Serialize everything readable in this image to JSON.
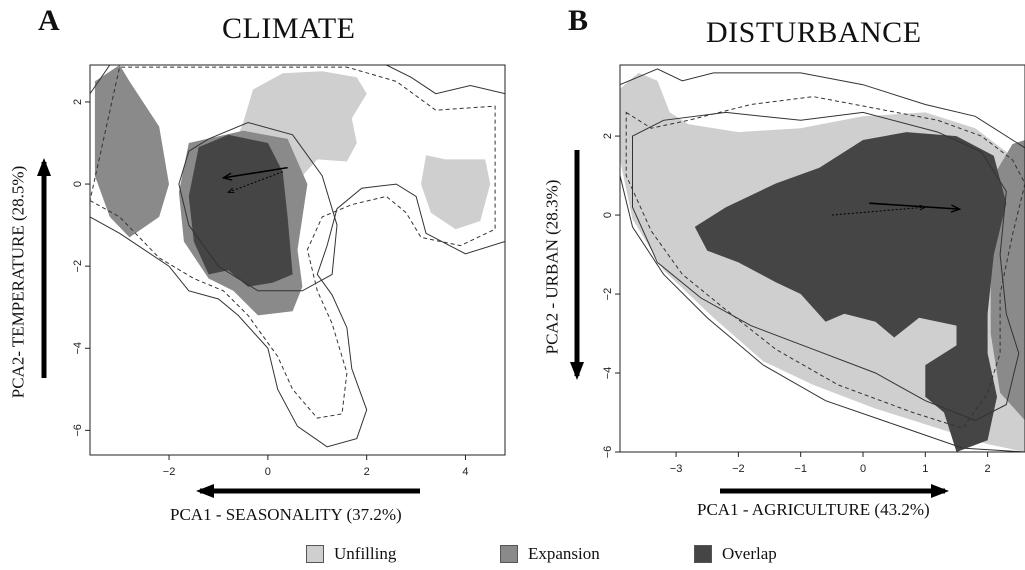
{
  "colors": {
    "unfilling": "#cfcfcf",
    "expansion": "#8a8a8a",
    "overlap": "#454545",
    "contour": "#333333"
  },
  "legend": {
    "items": [
      {
        "label": "Unfilling",
        "color": "#cfcfcf"
      },
      {
        "label": "Expansion",
        "color": "#8a8a8a"
      },
      {
        "label": "Overlap",
        "color": "#454545"
      }
    ]
  },
  "chart_data": [
    {
      "type": "niche-overlap-map",
      "panel_letter": "A",
      "title": "CLIMATE",
      "xlabel": "PCA1 - SEASONALITY (37.2%)",
      "ylabel": "PCA2- TEMPERATURE (28.5%)",
      "xlim": [
        -3.6,
        4.8
      ],
      "ylim": [
        -6.6,
        2.9
      ],
      "xticks": [
        -2,
        0,
        2,
        4
      ],
      "yticks": [
        2,
        0,
        -2,
        -4,
        -6
      ],
      "x_arrow_direction": "left",
      "y_arrow_direction": "up",
      "centroid_shift": {
        "from": [
          0.4,
          0.4
        ],
        "to": [
          -0.9,
          0.15
        ]
      },
      "centroid_shift_dotted": {
        "from": [
          0.3,
          0.3
        ],
        "to": [
          -0.8,
          -0.2
        ]
      },
      "regions": {
        "unfilling": [
          [
            -0.5,
            1.5
          ],
          [
            -0.3,
            2.3
          ],
          [
            0.3,
            2.7
          ],
          [
            1.1,
            2.75
          ],
          [
            1.8,
            2.6
          ],
          [
            2.0,
            2.2
          ],
          [
            1.7,
            1.6
          ],
          [
            1.8,
            1.0
          ],
          [
            1.6,
            0.55
          ],
          [
            1.0,
            0.6
          ],
          [
            0.7,
            0.2
          ],
          [
            0.4,
            -0.6
          ],
          [
            0.0,
            -1.1
          ],
          [
            -0.4,
            -1.2
          ],
          [
            -0.7,
            -0.3
          ],
          [
            -0.8,
            0.6
          ]
        ],
        "unfilling_blob": [
          [
            3.2,
            0.7
          ],
          [
            3.6,
            0.6
          ],
          [
            4.4,
            0.6
          ],
          [
            4.5,
            0.0
          ],
          [
            4.3,
            -0.9
          ],
          [
            3.8,
            -1.1
          ],
          [
            3.3,
            -0.7
          ],
          [
            3.1,
            0.0
          ]
        ],
        "expansion": [
          [
            -3.5,
            2.5
          ],
          [
            -3.0,
            2.9
          ],
          [
            -2.8,
            2.5
          ],
          [
            -2.2,
            1.4
          ],
          [
            -2.0,
            0.0
          ],
          [
            -2.2,
            -0.8
          ],
          [
            -2.8,
            -1.3
          ],
          [
            -3.2,
            -0.8
          ],
          [
            -3.5,
            0.2
          ]
        ],
        "expansion_lower": [
          [
            -1.6,
            1.0
          ],
          [
            -0.5,
            1.3
          ],
          [
            0.4,
            1.1
          ],
          [
            0.8,
            0.0
          ],
          [
            0.6,
            -1.6
          ],
          [
            0.7,
            -2.5
          ],
          [
            0.5,
            -3.1
          ],
          [
            -0.2,
            -3.2
          ],
          [
            -0.7,
            -2.6
          ],
          [
            -1.2,
            -2.3
          ],
          [
            -1.7,
            -1.4
          ],
          [
            -1.8,
            -0.2
          ]
        ],
        "overlap": [
          [
            -1.4,
            0.9
          ],
          [
            -0.8,
            1.2
          ],
          [
            0.0,
            1.0
          ],
          [
            0.3,
            0.3
          ],
          [
            0.4,
            -0.8
          ],
          [
            0.5,
            -2.2
          ],
          [
            0.1,
            -2.4
          ],
          [
            -0.4,
            -2.5
          ],
          [
            -0.8,
            -2.1
          ],
          [
            -1.2,
            -2.2
          ],
          [
            -1.5,
            -1.4
          ],
          [
            -1.6,
            -0.3
          ]
        ]
      },
      "contours": {
        "outer_solid": [
          [
            -3.6,
            0.0
          ],
          [
            -3.6,
            -0.8
          ],
          [
            -3.0,
            -1.2
          ],
          [
            -2.0,
            -2.0
          ],
          [
            -1.6,
            -2.6
          ],
          [
            -1.0,
            -2.8
          ],
          [
            -0.6,
            -3.2
          ],
          [
            0.0,
            -4.0
          ],
          [
            0.2,
            -5.0
          ],
          [
            0.6,
            -5.9
          ],
          [
            1.2,
            -6.4
          ],
          [
            1.8,
            -6.2
          ],
          [
            2.0,
            -5.5
          ],
          [
            1.7,
            -4.5
          ],
          [
            1.6,
            -3.5
          ],
          [
            1.3,
            -2.7
          ],
          [
            1.0,
            -2.2
          ],
          [
            1.2,
            -1.5
          ],
          [
            1.4,
            -0.6
          ],
          [
            1.9,
            -0.1
          ],
          [
            2.6,
            0.0
          ],
          [
            3.0,
            -0.3
          ],
          [
            3.2,
            -1.2
          ],
          [
            4.0,
            -1.7
          ],
          [
            4.8,
            -1.4
          ],
          [
            4.8,
            2.2
          ],
          [
            4.1,
            2.4
          ],
          [
            3.4,
            2.2
          ],
          [
            2.9,
            2.6
          ],
          [
            2.4,
            2.9
          ],
          [
            -3.2,
            2.9
          ],
          [
            -3.6,
            2.2
          ]
        ],
        "inner_dashed": [
          [
            -3.6,
            -0.4
          ],
          [
            -3.0,
            -0.8
          ],
          [
            -2.2,
            -1.8
          ],
          [
            -1.5,
            -2.3
          ],
          [
            -0.9,
            -2.6
          ],
          [
            -0.4,
            -3.2
          ],
          [
            0.2,
            -4.2
          ],
          [
            0.5,
            -5.0
          ],
          [
            1.0,
            -5.7
          ],
          [
            1.5,
            -5.6
          ],
          [
            1.6,
            -4.6
          ],
          [
            1.3,
            -3.4
          ],
          [
            1.0,
            -2.6
          ],
          [
            0.8,
            -1.6
          ],
          [
            1.1,
            -0.8
          ],
          [
            1.7,
            -0.5
          ],
          [
            2.4,
            -0.3
          ],
          [
            2.8,
            -0.7
          ],
          [
            3.1,
            -1.3
          ],
          [
            3.9,
            -1.5
          ],
          [
            4.6,
            -1.1
          ],
          [
            4.6,
            1.9
          ],
          [
            3.4,
            1.8
          ],
          [
            2.6,
            2.5
          ],
          [
            1.6,
            2.85
          ],
          [
            -3.0,
            2.85
          ]
        ],
        "small_loop": [
          [
            -1.2,
            1.1
          ],
          [
            -0.4,
            1.5
          ],
          [
            0.5,
            1.2
          ],
          [
            1.1,
            0.2
          ],
          [
            1.4,
            -1.0
          ],
          [
            1.3,
            -2.2
          ],
          [
            0.7,
            -2.6
          ],
          [
            -0.2,
            -2.6
          ],
          [
            -1.0,
            -2.0
          ],
          [
            -1.6,
            -1.0
          ],
          [
            -1.8,
            0.0
          ],
          [
            -1.6,
            0.8
          ]
        ]
      }
    },
    {
      "type": "niche-overlap-map",
      "panel_letter": "B",
      "title": "DISTURBANCE",
      "xlabel": "PCA1 - AGRICULTURE (43.2%)",
      "ylabel": "PCA2 - URBAN   (28.3%)",
      "xlim": [
        -3.9,
        2.6
      ],
      "ylim": [
        -6.0,
        3.8
      ],
      "xticks": [
        -3,
        -2,
        -1,
        0,
        1,
        2
      ],
      "yticks": [
        2,
        0,
        -2,
        -4,
        -6
      ],
      "x_arrow_direction": "right",
      "y_arrow_direction": "down",
      "centroid_shift": {
        "from": [
          0.1,
          0.3
        ],
        "to": [
          1.55,
          0.15
        ]
      },
      "centroid_shift_dotted": {
        "from": [
          -0.5,
          0.0
        ],
        "to": [
          1.0,
          0.2
        ]
      },
      "regions": {
        "unfilling": [
          [
            -3.9,
            3.2
          ],
          [
            -3.6,
            3.6
          ],
          [
            -3.3,
            3.4
          ],
          [
            -3.1,
            2.6
          ],
          [
            -2.8,
            2.3
          ],
          [
            -2.0,
            2.1
          ],
          [
            -1.0,
            2.2
          ],
          [
            0.0,
            2.5
          ],
          [
            1.0,
            2.6
          ],
          [
            1.8,
            2.2
          ],
          [
            2.3,
            1.6
          ],
          [
            2.6,
            1.0
          ],
          [
            2.6,
            -6.0
          ],
          [
            2.0,
            -5.8
          ],
          [
            1.2,
            -5.4
          ],
          [
            0.2,
            -4.9
          ],
          [
            -0.8,
            -4.3
          ],
          [
            -1.6,
            -3.7
          ],
          [
            -2.4,
            -2.6
          ],
          [
            -3.2,
            -1.4
          ],
          [
            -3.7,
            -0.1
          ],
          [
            -3.9,
            1.4
          ]
        ],
        "expansion": [
          [
            2.1,
            1.0
          ],
          [
            2.4,
            1.8
          ],
          [
            2.6,
            1.9
          ],
          [
            2.6,
            -5.2
          ],
          [
            2.2,
            -4.5
          ],
          [
            2.05,
            -3.0
          ],
          [
            2.05,
            -1.0
          ]
        ],
        "overlap": [
          [
            -2.7,
            -0.3
          ],
          [
            -2.2,
            0.2
          ],
          [
            -1.4,
            0.8
          ],
          [
            -0.7,
            1.2
          ],
          [
            0.0,
            1.9
          ],
          [
            0.7,
            2.1
          ],
          [
            1.5,
            2.0
          ],
          [
            2.1,
            1.5
          ],
          [
            2.3,
            0.3
          ],
          [
            2.1,
            -1.0
          ],
          [
            2.0,
            -2.5
          ],
          [
            2.0,
            -3.5
          ],
          [
            2.15,
            -4.6
          ],
          [
            2.0,
            -5.7
          ],
          [
            1.5,
            -6.0
          ],
          [
            1.3,
            -5.0
          ],
          [
            1.0,
            -4.6
          ],
          [
            1.0,
            -3.8
          ],
          [
            1.5,
            -3.3
          ],
          [
            1.5,
            -2.8
          ],
          [
            0.9,
            -2.6
          ],
          [
            0.5,
            -3.1
          ],
          [
            0.2,
            -2.7
          ],
          [
            -0.3,
            -2.5
          ],
          [
            -0.6,
            -2.7
          ],
          [
            -1.0,
            -2.0
          ],
          [
            -1.4,
            -1.7
          ],
          [
            -2.0,
            -1.2
          ],
          [
            -2.5,
            -0.9
          ]
        ]
      },
      "contours": {
        "outer_solid": [
          [
            -3.9,
            3.3
          ],
          [
            -3.3,
            3.7
          ],
          [
            -2.9,
            3.4
          ],
          [
            -2.4,
            3.6
          ],
          [
            -1.0,
            3.6
          ],
          [
            0.0,
            3.3
          ],
          [
            1.0,
            2.8
          ],
          [
            1.8,
            2.5
          ],
          [
            2.4,
            1.9
          ],
          [
            2.6,
            1.7
          ],
          [
            2.6,
            -6.0
          ],
          [
            1.6,
            -5.9
          ],
          [
            0.5,
            -5.3
          ],
          [
            -0.6,
            -4.7
          ],
          [
            -1.6,
            -3.8
          ],
          [
            -2.5,
            -2.6
          ],
          [
            -3.2,
            -1.5
          ],
          [
            -3.7,
            -0.3
          ],
          [
            -3.9,
            1.0
          ]
        ],
        "inner_dashed": [
          [
            -3.8,
            2.6
          ],
          [
            -3.4,
            2.2
          ],
          [
            -2.8,
            2.4
          ],
          [
            -1.8,
            2.8
          ],
          [
            -0.8,
            3.0
          ],
          [
            0.2,
            2.7
          ],
          [
            1.2,
            2.4
          ],
          [
            1.9,
            2.0
          ],
          [
            2.4,
            1.4
          ],
          [
            2.6,
            0.8
          ],
          [
            2.4,
            -0.5
          ],
          [
            2.2,
            -2.0
          ],
          [
            2.2,
            -3.5
          ],
          [
            2.0,
            -4.5
          ],
          [
            1.6,
            -5.4
          ],
          [
            0.8,
            -5.0
          ],
          [
            -0.4,
            -4.3
          ],
          [
            -1.4,
            -3.4
          ],
          [
            -2.2,
            -2.4
          ],
          [
            -2.9,
            -1.5
          ],
          [
            -3.4,
            -0.4
          ],
          [
            -3.8,
            1.0
          ]
        ],
        "inner_solid": [
          [
            -3.7,
            2.0
          ],
          [
            -3.2,
            2.4
          ],
          [
            -2.2,
            2.6
          ],
          [
            -1.0,
            2.4
          ],
          [
            0.0,
            2.6
          ],
          [
            1.2,
            2.1
          ],
          [
            1.9,
            1.6
          ],
          [
            2.3,
            0.6
          ],
          [
            2.2,
            -1.0
          ],
          [
            2.3,
            -2.5
          ],
          [
            2.5,
            -3.5
          ],
          [
            2.3,
            -4.8
          ],
          [
            1.8,
            -5.2
          ],
          [
            1.0,
            -4.7
          ],
          [
            0.2,
            -4.0
          ],
          [
            -0.8,
            -3.4
          ],
          [
            -1.8,
            -2.8
          ],
          [
            -2.6,
            -2.1
          ],
          [
            -3.3,
            -1.2
          ],
          [
            -3.7,
            0.2
          ]
        ]
      }
    }
  ]
}
